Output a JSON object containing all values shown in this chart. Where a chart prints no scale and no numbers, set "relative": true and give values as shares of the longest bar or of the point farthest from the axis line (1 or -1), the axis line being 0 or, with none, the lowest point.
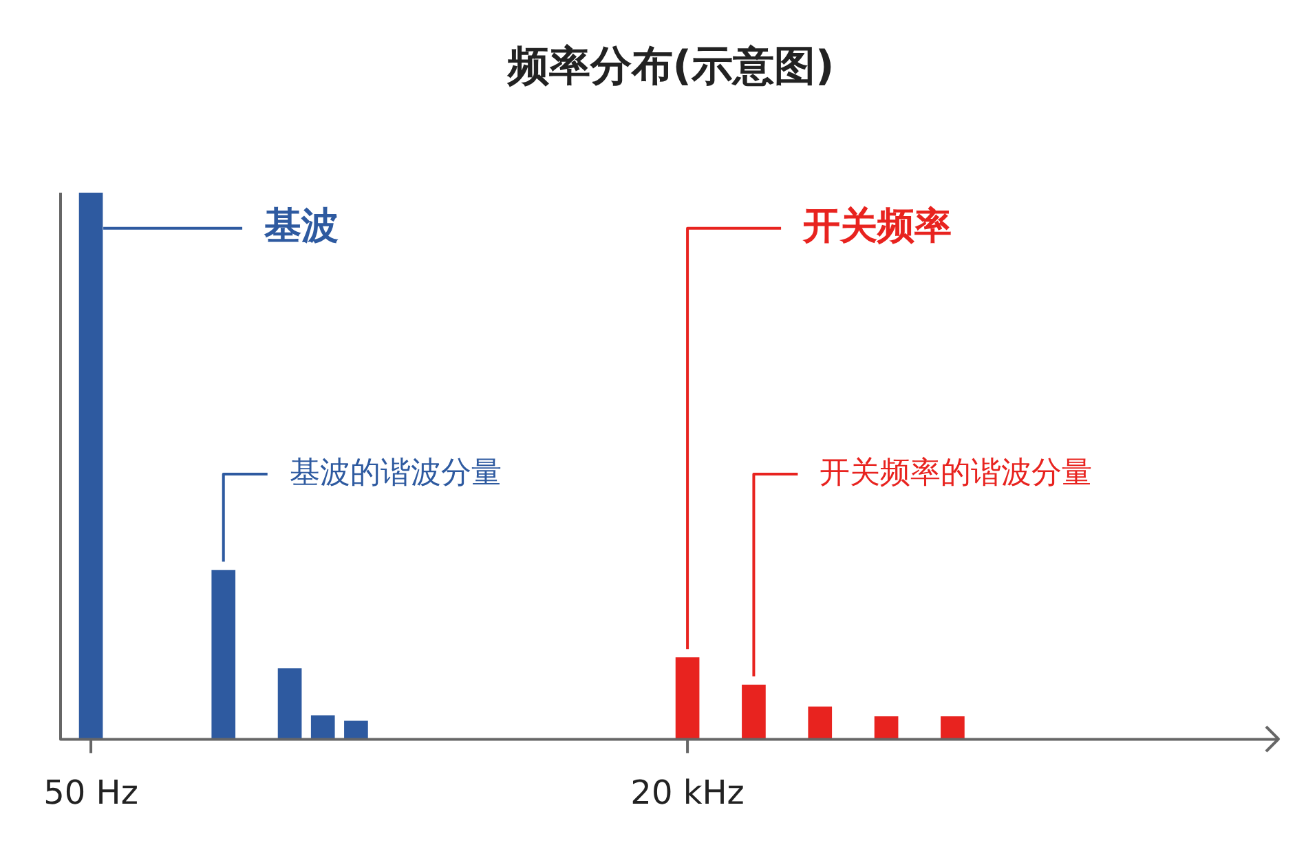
{
  "chart_data": {
    "type": "bar",
    "title": "频率分布(示意图)",
    "relative": true,
    "legend": false,
    "grid": false,
    "tick_labels": "x",
    "categories": [
      "50 Hz",
      null,
      null,
      null,
      null,
      null,
      null,
      null,
      null,
      null,
      null,
      null,
      null,
      null,
      null,
      null,
      null,
      null,
      "20 kHz",
      null,
      null,
      null,
      null,
      null,
      null,
      null,
      null,
      null,
      null,
      null,
      null,
      null,
      null,
      null,
      null,
      null
    ],
    "values": [
      1,
      null,
      null,
      null,
      0.31,
      null,
      0.13,
      0.044,
      0.034,
      null,
      null,
      null,
      null,
      null,
      null,
      null,
      null,
      null,
      0.15,
      null,
      0.1,
      null,
      0.06,
      null,
      0.042,
      null,
      0.042,
      null,
      null,
      null,
      null,
      null,
      null,
      null,
      null,
      null
    ],
    "colors": [
      "#2e5aa0",
      null,
      null,
      null,
      "#2e5aa0",
      null,
      "#2e5aa0",
      "#2e5aa0",
      "#2e5aa0",
      null,
      null,
      null,
      null,
      null,
      null,
      null,
      null,
      null,
      "#e8231f",
      null,
      "#e8231f",
      null,
      "#e8231f",
      null,
      "#e8231f",
      null,
      "#e8231f",
      null,
      null,
      null,
      null,
      null,
      null,
      null,
      null,
      null
    ],
    "annotations": [
      "基波",
      "基波的谐波分量",
      "开关频率",
      "开关频率的谐波分量"
    ]
  }
}
